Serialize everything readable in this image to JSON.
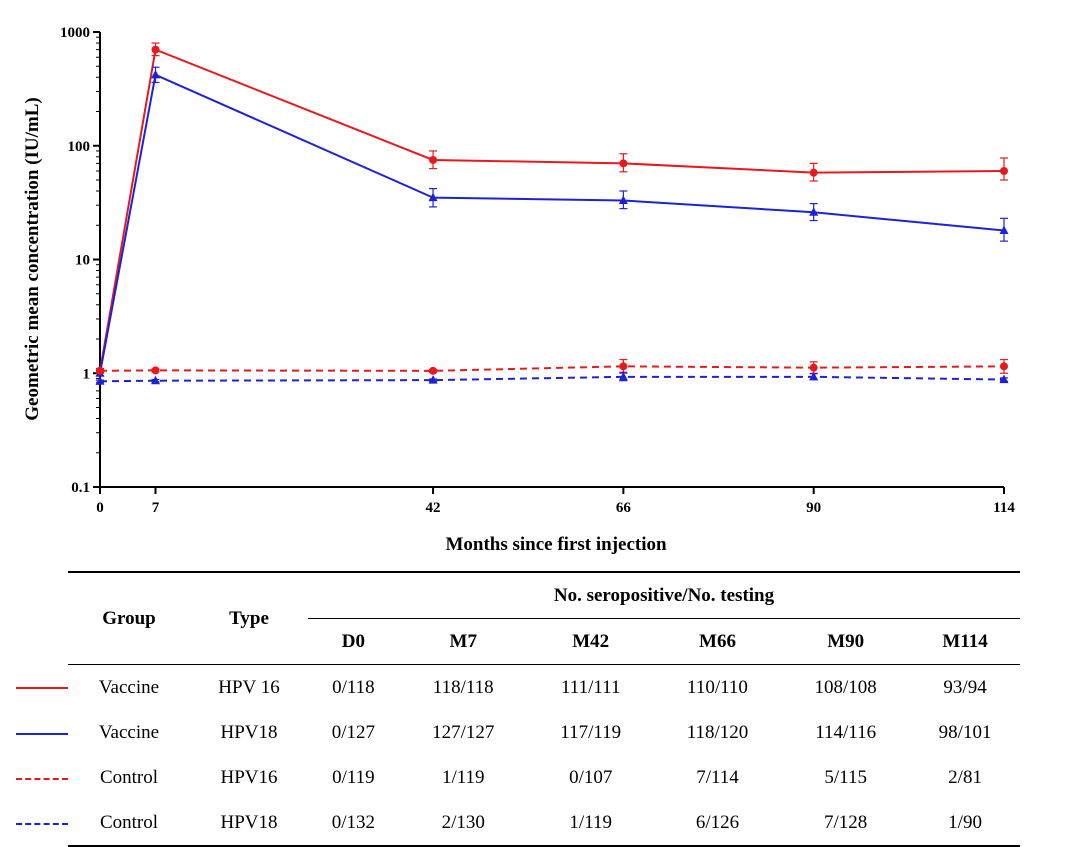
{
  "chart_data": {
    "type": "line",
    "ylabel": "Geometric mean concentration (IU/mL)",
    "xlabel": "Months since first injection",
    "yscale": "log",
    "ylim": [
      0.1,
      1000
    ],
    "yticks": [
      "0.1",
      "1",
      "10",
      "100",
      "1000"
    ],
    "x": [
      0,
      7,
      42,
      66,
      90,
      114
    ],
    "xticks": [
      "0",
      "7",
      "42",
      "66",
      "90",
      "114"
    ],
    "series": [
      {
        "group": "Vaccine",
        "type": "HPV 16",
        "color": "#e8191c",
        "dash": "solid",
        "marker": "circle",
        "values": [
          1.05,
          700,
          75,
          70,
          58,
          60
        ],
        "err_up": [
          1.1,
          800,
          90,
          85,
          70,
          78
        ],
        "err_low": [
          1.0,
          620,
          63,
          59,
          49,
          50
        ]
      },
      {
        "group": "Vaccine",
        "type": "HPV18",
        "color": "#1e22d6",
        "dash": "solid",
        "marker": "triangle",
        "values": [
          1.0,
          420,
          35,
          33,
          26,
          18
        ],
        "err_up": [
          1.05,
          490,
          42,
          40,
          31,
          23
        ],
        "err_low": [
          0.95,
          360,
          29,
          28,
          22,
          14.5
        ]
      },
      {
        "group": "Control",
        "type": "HPV16",
        "color": "#e8191c",
        "dash": "dashed",
        "marker": "circle",
        "values": [
          1.05,
          1.06,
          1.05,
          1.15,
          1.12,
          1.15
        ],
        "err_up": [
          1.08,
          1.09,
          1.08,
          1.32,
          1.26,
          1.32
        ],
        "err_low": [
          1.02,
          1.03,
          1.02,
          1.0,
          1.0,
          1.0
        ]
      },
      {
        "group": "Control",
        "type": "HPV18",
        "color": "#1e22d6",
        "dash": "dashed",
        "marker": "triangle",
        "values": [
          0.85,
          0.86,
          0.87,
          0.93,
          0.93,
          0.88
        ],
        "err_up": [
          0.87,
          0.88,
          0.89,
          1.02,
          0.99,
          0.91
        ],
        "err_low": [
          0.83,
          0.84,
          0.85,
          0.86,
          0.88,
          0.85
        ]
      }
    ]
  },
  "table": {
    "group_header": "Group",
    "type_header": "Type",
    "span_header": "No. seropositive/No. testing",
    "columns": [
      "D0",
      "M7",
      "M42",
      "M66",
      "M90",
      "M114"
    ],
    "rows": [
      {
        "group": "Vaccine",
        "type": "HPV 16",
        "values": [
          "0/118",
          "118/118",
          "111/111",
          "110/110",
          "108/108",
          "93/94"
        ]
      },
      {
        "group": "Vaccine",
        "type": "HPV18",
        "values": [
          "0/127",
          "127/127",
          "117/119",
          "118/120",
          "114/116",
          "98/101"
        ]
      },
      {
        "group": "Control",
        "type": "HPV16",
        "values": [
          "0/119",
          "1/119",
          "0/107",
          "7/114",
          "5/115",
          "2/81"
        ]
      },
      {
        "group": "Control",
        "type": "HPV18",
        "values": [
          "0/132",
          "2/130",
          "1/119",
          "6/126",
          "7/128",
          "1/90"
        ]
      }
    ]
  }
}
